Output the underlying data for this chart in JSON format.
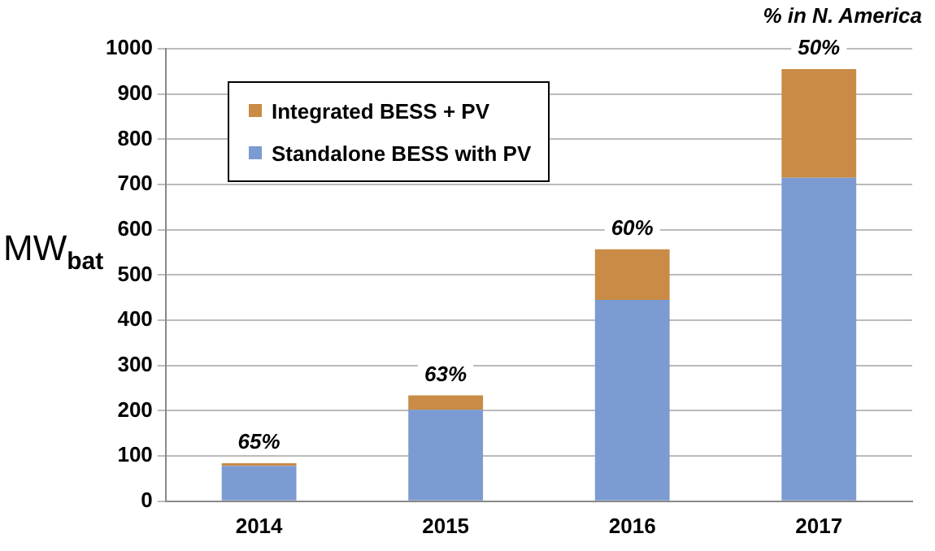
{
  "chart_data": {
    "type": "bar",
    "stacked": true,
    "ylabel": "MW$_{bat}$",
    "categories": [
      "2014",
      "2015",
      "2016",
      "2017"
    ],
    "series": [
      {
        "name": "Standalone BESS with PV",
        "color": "#7b9bd2",
        "values": [
          78,
          202,
          445,
          715
        ]
      },
      {
        "name": "Integrated BESS + PV",
        "color": "#c98b45",
        "values": [
          6,
          32,
          112,
          240
        ]
      }
    ],
    "ylim": [
      0,
      1000
    ],
    "yticks": [
      0,
      100,
      200,
      300,
      400,
      500,
      600,
      700,
      800,
      900,
      1000
    ],
    "grid": "y",
    "legend": "top left",
    "annotations": [
      {
        "text": "65%",
        "x": "2014",
        "y": 84
      },
      {
        "text": "63%",
        "x": "2015",
        "y": 234
      },
      {
        "text": "60%",
        "x": "2016",
        "y": 557
      },
      {
        "text": "50%",
        "x": "2017",
        "y": 955
      },
      "% in N. America"
    ]
  }
}
